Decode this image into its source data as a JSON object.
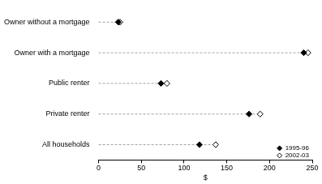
{
  "chart_data": {
    "type": "dot",
    "orientation": "horizontal",
    "x_label": "$",
    "categories": [
      "Owner without a mortgage",
      "Owner with a mortgage",
      "Public renter",
      "Private renter",
      "All households"
    ],
    "series": [
      {
        "name": "1995-96",
        "color": "#000000",
        "marker": "diamond",
        "values": [
          23,
          240,
          73,
          176,
          118
        ]
      },
      {
        "name": "2002-03",
        "color": "#000000",
        "marker": "open_diamond",
        "values": [
          25,
          245,
          80,
          189,
          137
        ]
      }
    ],
    "xlim": [
      0,
      250
    ],
    "xticks": [
      0,
      50,
      100,
      150,
      200,
      250
    ],
    "grid": false,
    "legend": "lower right"
  }
}
